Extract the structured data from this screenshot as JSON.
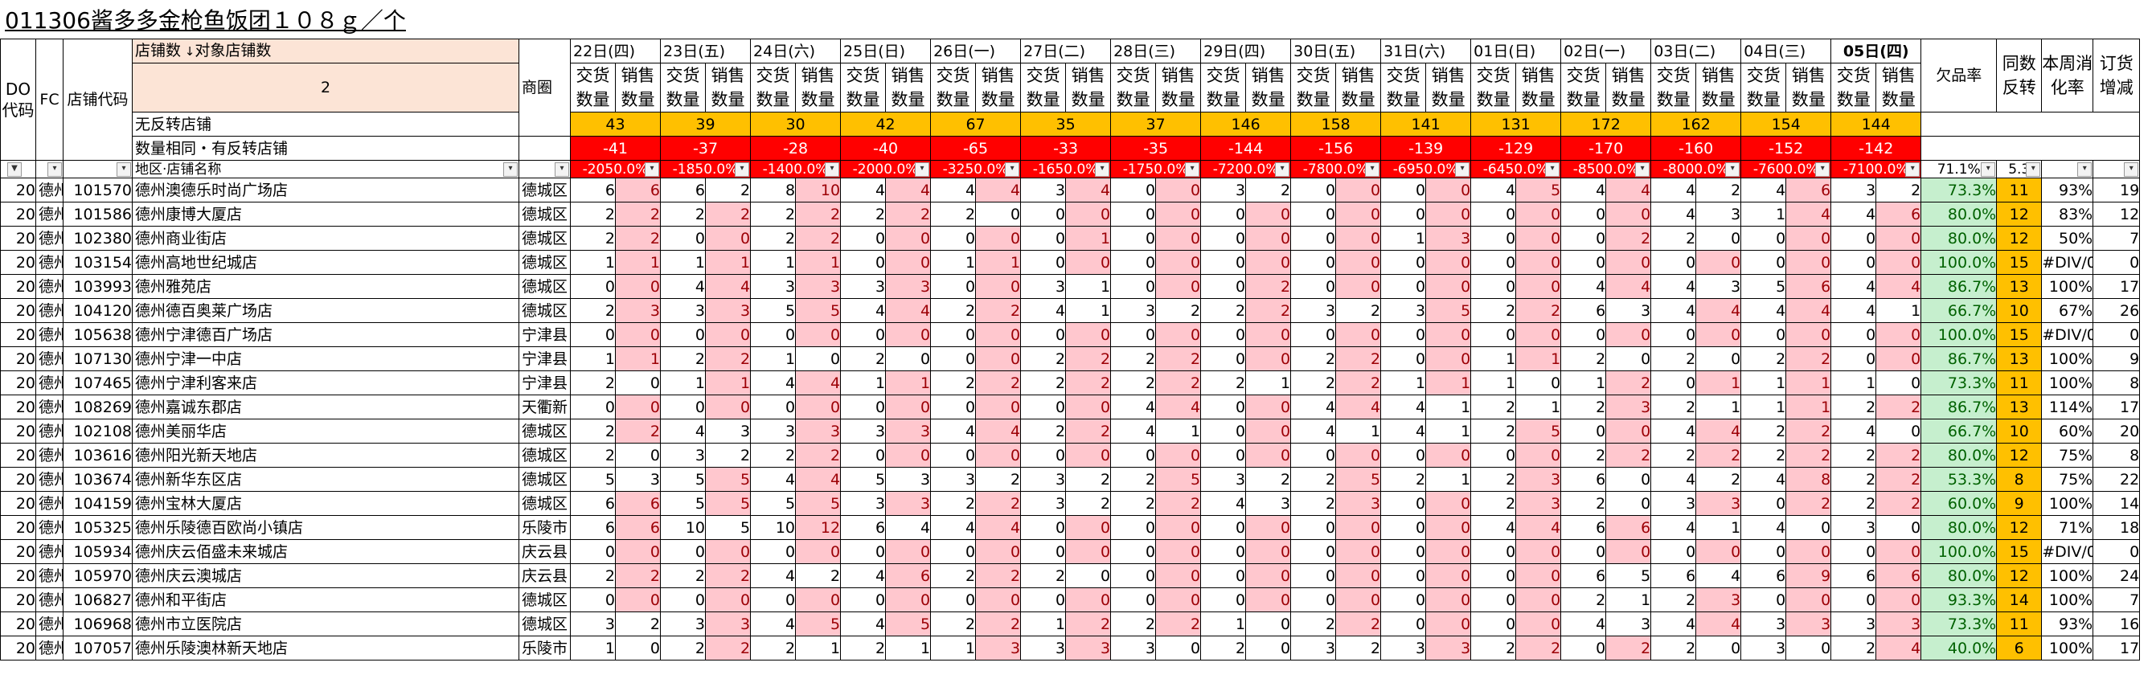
{
  "title": "011306酱多多金枪鱼饭团１０８ｇ／个",
  "header": {
    "do_code": "DO代码",
    "fc": "FC",
    "store_code": "店铺代码",
    "store_count_label": "店铺数",
    "target_store_count_label": "对象店铺数",
    "target_store_count_value": "2",
    "district": "商圈",
    "no_reverse_label": "无反转店铺",
    "same_qty_label": "数量相同・有反转店铺",
    "region_name_label": "地区·店铺名称",
    "shortage_rate": "欠品率",
    "same_reverse": "同数反转",
    "weekly_digest": "本周消化率",
    "order_change": "订货增减",
    "sub_delivery": "交货数量",
    "sub_sales": "销售数量",
    "shortage_rate_total": "71.1%",
    "same_reverse_total": "5.3"
  },
  "dates": [
    {
      "label": "22日(四)",
      "no_reverse": "43",
      "diff": "-41",
      "pct": "-2050.0%"
    },
    {
      "label": "23日(五)",
      "no_reverse": "39",
      "diff": "-37",
      "pct": "-1850.0%"
    },
    {
      "label": "24日(六)",
      "no_reverse": "30",
      "diff": "-28",
      "pct": "-1400.0%"
    },
    {
      "label": "25日(日)",
      "no_reverse": "42",
      "diff": "-40",
      "pct": "-2000.0%"
    },
    {
      "label": "26日(一)",
      "no_reverse": "67",
      "diff": "-65",
      "pct": "-3250.0%"
    },
    {
      "label": "27日(二)",
      "no_reverse": "35",
      "diff": "-33",
      "pct": "-1650.0%"
    },
    {
      "label": "28日(三)",
      "no_reverse": "37",
      "diff": "-35",
      "pct": "-1750.0%"
    },
    {
      "label": "29日(四)",
      "no_reverse": "146",
      "diff": "-144",
      "pct": "-7200.0%"
    },
    {
      "label": "30日(五)",
      "no_reverse": "158",
      "diff": "-156",
      "pct": "-7800.0%"
    },
    {
      "label": "31日(六)",
      "no_reverse": "141",
      "diff": "-139",
      "pct": "-6950.0%"
    },
    {
      "label": "01日(日)",
      "no_reverse": "131",
      "diff": "-129",
      "pct": "-6450.0%"
    },
    {
      "label": "02日(一)",
      "no_reverse": "172",
      "diff": "-170",
      "pct": "-8500.0%"
    },
    {
      "label": "03日(二)",
      "no_reverse": "162",
      "diff": "-160",
      "pct": "-8000.0%"
    },
    {
      "label": "04日(三)",
      "no_reverse": "154",
      "diff": "-152",
      "pct": "-7600.0%"
    },
    {
      "label": "05日(四)",
      "no_reverse": "144",
      "diff": "-142",
      "pct": "-7100.0%"
    }
  ],
  "rows": [
    {
      "do": "20",
      "fc": "德州",
      "code": "101570",
      "name": "德州澳德乐时尚广场店",
      "district": "德城区",
      "d": [
        6,
        6,
        6,
        2,
        8,
        10,
        4,
        4,
        4,
        4,
        3,
        4,
        0,
        0,
        3,
        2,
        0,
        0,
        0,
        0,
        4,
        5,
        4,
        4,
        4,
        2,
        4,
        6,
        3,
        2
      ],
      "rate": "73.3%",
      "rev": "11",
      "digest": "93%",
      "order": "19"
    },
    {
      "do": "20",
      "fc": "德州",
      "code": "101586",
      "name": "德州康博大厦店",
      "district": "德城区",
      "d": [
        2,
        2,
        2,
        2,
        2,
        2,
        2,
        2,
        2,
        0,
        0,
        0,
        0,
        0,
        0,
        0,
        0,
        0,
        0,
        0,
        0,
        0,
        0,
        0,
        4,
        3,
        1,
        4,
        4,
        6
      ],
      "rate": "80.0%",
      "rev": "12",
      "digest": "83%",
      "order": "12"
    },
    {
      "do": "20",
      "fc": "德州",
      "code": "102380",
      "name": "德州商业街店",
      "district": "德城区",
      "d": [
        2,
        2,
        0,
        0,
        2,
        2,
        0,
        0,
        0,
        0,
        0,
        1,
        0,
        0,
        0,
        0,
        0,
        0,
        1,
        3,
        0,
        0,
        0,
        2,
        2,
        0,
        0,
        0,
        0,
        0
      ],
      "rate": "80.0%",
      "rev": "12",
      "digest": "50%",
      "order": "7"
    },
    {
      "do": "20",
      "fc": "德州",
      "code": "103154",
      "name": "德州高地世纪城店",
      "district": "德城区",
      "d": [
        1,
        1,
        1,
        1,
        1,
        1,
        0,
        0,
        1,
        1,
        0,
        0,
        0,
        0,
        0,
        0,
        0,
        0,
        0,
        0,
        0,
        0,
        0,
        0,
        0,
        0,
        0,
        0,
        0,
        0
      ],
      "rate": "100.0%",
      "rev": "15",
      "digest": "#DIV/0!",
      "order": "0"
    },
    {
      "do": "20",
      "fc": "德州",
      "code": "103993",
      "name": "德州雅苑店",
      "district": "德城区",
      "d": [
        0,
        0,
        4,
        4,
        3,
        3,
        3,
        3,
        0,
        0,
        3,
        1,
        0,
        0,
        0,
        2,
        0,
        0,
        0,
        0,
        0,
        0,
        4,
        4,
        4,
        3,
        5,
        6,
        4,
        4
      ],
      "rate": "86.7%",
      "rev": "13",
      "digest": "100%",
      "order": "17"
    },
    {
      "do": "20",
      "fc": "德州",
      "code": "104120",
      "name": "德州德百奥莱广场店",
      "district": "德城区",
      "d": [
        2,
        3,
        3,
        3,
        5,
        5,
        4,
        4,
        2,
        2,
        4,
        1,
        3,
        2,
        2,
        2,
        3,
        2,
        3,
        5,
        2,
        2,
        6,
        3,
        4,
        4,
        4,
        4,
        4,
        1
      ],
      "rate": "66.7%",
      "rev": "10",
      "digest": "67%",
      "order": "26"
    },
    {
      "do": "20",
      "fc": "德州",
      "code": "105638",
      "name": "德州宁津德百广场店",
      "district": "宁津县",
      "d": [
        0,
        0,
        0,
        0,
        0,
        0,
        0,
        0,
        0,
        0,
        0,
        0,
        0,
        0,
        0,
        0,
        0,
        0,
        0,
        0,
        0,
        0,
        0,
        0,
        0,
        0,
        0,
        0,
        0,
        0
      ],
      "rate": "100.0%",
      "rev": "15",
      "digest": "#DIV/0!",
      "order": "0"
    },
    {
      "do": "20",
      "fc": "德州",
      "code": "107130",
      "name": "德州宁津一中店",
      "district": "宁津县",
      "d": [
        1,
        1,
        2,
        2,
        1,
        0,
        2,
        0,
        0,
        0,
        2,
        2,
        2,
        2,
        0,
        0,
        2,
        2,
        0,
        0,
        1,
        1,
        2,
        0,
        2,
        0,
        2,
        2,
        0,
        0
      ],
      "rate": "86.7%",
      "rev": "13",
      "digest": "100%",
      "order": "9"
    },
    {
      "do": "20",
      "fc": "德州",
      "code": "107465",
      "name": "德州宁津利客来店",
      "district": "宁津县",
      "d": [
        2,
        0,
        1,
        1,
        4,
        4,
        1,
        1,
        2,
        2,
        2,
        2,
        2,
        2,
        2,
        1,
        2,
        2,
        1,
        1,
        1,
        0,
        1,
        2,
        0,
        1,
        1,
        1,
        1,
        0
      ],
      "rate": "73.3%",
      "rev": "11",
      "digest": "100%",
      "order": "8"
    },
    {
      "do": "20",
      "fc": "德州",
      "code": "108269",
      "name": "德州嘉诚东郡店",
      "district": "天衢新",
      "d": [
        0,
        0,
        0,
        0,
        0,
        0,
        0,
        0,
        0,
        0,
        0,
        0,
        4,
        4,
        0,
        0,
        4,
        4,
        4,
        1,
        2,
        1,
        2,
        3,
        2,
        1,
        1,
        1,
        2,
        2
      ],
      "rate": "86.7%",
      "rev": "13",
      "digest": "114%",
      "order": "17"
    },
    {
      "do": "20",
      "fc": "德州",
      "code": "102108",
      "name": "德州美丽华店",
      "district": "德城区",
      "d": [
        2,
        2,
        4,
        3,
        3,
        3,
        3,
        3,
        4,
        4,
        2,
        2,
        4,
        1,
        0,
        0,
        4,
        1,
        4,
        1,
        2,
        5,
        0,
        0,
        4,
        4,
        2,
        2,
        4,
        0
      ],
      "rate": "66.7%",
      "rev": "10",
      "digest": "60%",
      "order": "20"
    },
    {
      "do": "20",
      "fc": "德州",
      "code": "103616",
      "name": "德州阳光新天地店",
      "district": "德城区",
      "d": [
        2,
        0,
        3,
        2,
        2,
        2,
        0,
        0,
        0,
        0,
        0,
        0,
        0,
        0,
        0,
        0,
        0,
        0,
        0,
        0,
        0,
        0,
        2,
        2,
        2,
        2,
        2,
        2,
        2,
        2
      ],
      "rate": "80.0%",
      "rev": "12",
      "digest": "75%",
      "order": "8"
    },
    {
      "do": "20",
      "fc": "德州",
      "code": "103674",
      "name": "德州新华东区店",
      "district": "德城区",
      "d": [
        5,
        3,
        5,
        5,
        4,
        4,
        5,
        3,
        3,
        2,
        3,
        2,
        2,
        5,
        3,
        2,
        2,
        5,
        2,
        1,
        2,
        3,
        6,
        0,
        4,
        2,
        4,
        8,
        2,
        2
      ],
      "rate": "53.3%",
      "rev": "8",
      "digest": "75%",
      "order": "22"
    },
    {
      "do": "20",
      "fc": "德州",
      "code": "104159",
      "name": "德州宝林大厦店",
      "district": "德城区",
      "d": [
        6,
        6,
        5,
        5,
        5,
        5,
        3,
        3,
        2,
        2,
        3,
        2,
        2,
        2,
        4,
        3,
        2,
        3,
        0,
        0,
        2,
        3,
        2,
        0,
        3,
        3,
        0,
        2,
        2,
        2
      ],
      "rate": "60.0%",
      "rev": "9",
      "digest": "100%",
      "order": "14"
    },
    {
      "do": "20",
      "fc": "德州",
      "code": "105325",
      "name": "德州乐陵德百欧尚小镇店",
      "district": "乐陵市",
      "d": [
        6,
        6,
        10,
        5,
        10,
        12,
        6,
        4,
        4,
        4,
        0,
        0,
        0,
        0,
        0,
        0,
        0,
        0,
        0,
        0,
        4,
        4,
        6,
        6,
        4,
        1,
        4,
        0,
        3,
        0
      ],
      "rate": "80.0%",
      "rev": "12",
      "digest": "71%",
      "order": "18"
    },
    {
      "do": "20",
      "fc": "德州",
      "code": "105934",
      "name": "德州庆云佰盛未来城店",
      "district": "庆云县",
      "d": [
        0,
        0,
        0,
        0,
        0,
        0,
        0,
        0,
        0,
        0,
        0,
        0,
        0,
        0,
        0,
        0,
        0,
        0,
        0,
        0,
        0,
        0,
        0,
        0,
        0,
        0,
        0,
        0,
        0,
        0
      ],
      "rate": "100.0%",
      "rev": "15",
      "digest": "#DIV/0!",
      "order": "0"
    },
    {
      "do": "20",
      "fc": "德州",
      "code": "105970",
      "name": "德州庆云澳城店",
      "district": "庆云县",
      "d": [
        2,
        2,
        2,
        2,
        4,
        2,
        4,
        6,
        2,
        2,
        2,
        0,
        0,
        0,
        0,
        0,
        0,
        0,
        0,
        0,
        0,
        0,
        6,
        5,
        6,
        4,
        6,
        9,
        6,
        6
      ],
      "rate": "80.0%",
      "rev": "12",
      "digest": "100%",
      "order": "24"
    },
    {
      "do": "20",
      "fc": "德州",
      "code": "106827",
      "name": "德州和平街店",
      "district": "德城区",
      "d": [
        0,
        0,
        0,
        0,
        0,
        0,
        0,
        0,
        0,
        0,
        0,
        0,
        0,
        0,
        0,
        0,
        0,
        0,
        0,
        0,
        0,
        0,
        2,
        1,
        2,
        3,
        0,
        0,
        0,
        0
      ],
      "rate": "93.3%",
      "rev": "14",
      "digest": "100%",
      "order": "7"
    },
    {
      "do": "20",
      "fc": "德州",
      "code": "106968",
      "name": "德州市立医院店",
      "district": "德城区",
      "d": [
        3,
        2,
        3,
        3,
        4,
        5,
        4,
        5,
        2,
        2,
        1,
        2,
        2,
        2,
        1,
        0,
        2,
        2,
        0,
        0,
        0,
        0,
        4,
        3,
        4,
        4,
        3,
        3,
        3,
        3
      ],
      "rate": "73.3%",
      "rev": "11",
      "digest": "93%",
      "order": "16"
    },
    {
      "do": "20",
      "fc": "德州",
      "code": "107057",
      "name": "德州乐陵澳林新天地店",
      "district": "乐陵市",
      "d": [
        1,
        0,
        2,
        2,
        2,
        1,
        2,
        1,
        1,
        3,
        3,
        3,
        3,
        0,
        2,
        0,
        3,
        2,
        3,
        3,
        2,
        2,
        0,
        2,
        2,
        0,
        3,
        0,
        2,
        4
      ],
      "rate": "40.0%",
      "rev": "6",
      "digest": "100%",
      "order": "17"
    }
  ]
}
